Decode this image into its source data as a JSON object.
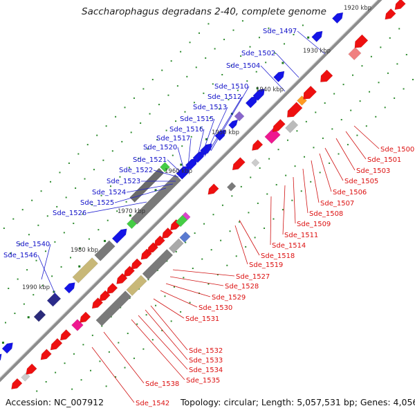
{
  "title": "Saccharophagus degradans 2-40, complete genome",
  "footer": {
    "accession": "Accession: NC_007912",
    "summary": "Topology: circular; Length: 5,057,531 bp; Genes: 4,056"
  },
  "colors": {
    "backbone": "#8c8c8c",
    "forward_label": "#1010c8",
    "reverse_label": "#dc1010",
    "tick_dot": "#2e8b2e",
    "gene_forward": "#1414e6",
    "gene_reverse": "#ee1010"
  },
  "ticks": [
    "1920 kbp",
    "1930 kbp",
    "1940 kbp",
    "1950 kbp",
    "1960 kbp",
    "1970 kbp",
    "1980 kbp",
    "1990 kbp"
  ],
  "labels_forward": [
    "Sde_1497",
    "Sde_1502",
    "Sde_1504",
    "Sde_1510",
    "Sde_1512",
    "Sde_1513",
    "Sde_1515",
    "Sde_1516",
    "Sde_1517",
    "Sde_1520",
    "Sde_1521",
    "Sde_1522",
    "Sde_1523",
    "Sde_1524",
    "Sde_1525",
    "Sde_1526",
    "Sde_1540",
    "Sde_1546"
  ],
  "labels_reverse": [
    "Sde_1500",
    "Sde_1501",
    "Sde_1503",
    "Sde_1505",
    "Sde_1506",
    "Sde_1507",
    "Sde_1508",
    "Sde_1509",
    "Sde_1511",
    "Sde_1514",
    "Sde_1518",
    "Sde_1519",
    "Sde_1527",
    "Sde_1528",
    "Sde_1529",
    "Sde_1530",
    "Sde_1531",
    "Sde_1532",
    "Sde_1533",
    "Sde_1534",
    "Sde_1535",
    "Sde_1538",
    "Sde_1542"
  ]
}
